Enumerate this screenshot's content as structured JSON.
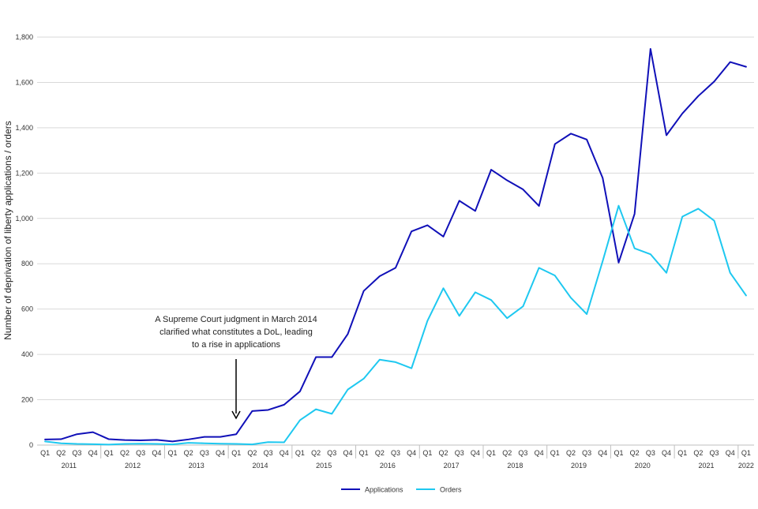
{
  "chart_data": {
    "type": "line",
    "ylabel": "Number of deprivation of liberty applications / orders",
    "ylim": [
      0,
      1800
    ],
    "yticks": [
      "0",
      "200",
      "400",
      "600",
      "800",
      "1,000",
      "1,200",
      "1,400",
      "1,600",
      "1,800"
    ],
    "ytick_values": [
      0,
      200,
      400,
      600,
      800,
      1000,
      1200,
      1400,
      1600,
      1800
    ],
    "grid": true,
    "legend_position": "bottom",
    "years": [
      "2011",
      "2012",
      "2013",
      "2014",
      "2015",
      "2016",
      "2017",
      "2018",
      "2019",
      "2020",
      "2021",
      "2022"
    ],
    "categories": [
      "Q1",
      "Q2",
      "Q3",
      "Q4",
      "Q1",
      "Q2",
      "Q3",
      "Q4",
      "Q1",
      "Q2",
      "Q3",
      "Q4",
      "Q1",
      "Q2",
      "Q3",
      "Q4",
      "Q1",
      "Q2",
      "Q3",
      "Q4",
      "Q1",
      "Q2",
      "Q3",
      "Q4",
      "Q1",
      "Q2",
      "Q3",
      "Q4",
      "Q1",
      "Q2",
      "Q3",
      "Q4",
      "Q1",
      "Q2",
      "Q3",
      "Q4",
      "Q1",
      "Q2",
      "Q3",
      "Q4",
      "Q1",
      "Q2",
      "Q3",
      "Q4",
      "Q1"
    ],
    "series": [
      {
        "name": "Applications",
        "color": "#1010b8",
        "values": [
          25,
          26,
          48,
          57,
          26,
          22,
          21,
          23,
          16,
          25,
          36,
          36,
          48,
          150,
          155,
          178,
          237,
          388,
          388,
          490,
          680,
          745,
          782,
          943,
          970,
          920,
          1078,
          1033,
          1215,
          1168,
          1128,
          1055,
          1328,
          1374,
          1348,
          1178,
          805,
          1020,
          1748,
          1367,
          1463,
          1540,
          1604,
          1690,
          1669
        ]
      },
      {
        "name": "Orders",
        "color": "#1ec8f0",
        "values": [
          16,
          8,
          5,
          4,
          2,
          5,
          6,
          5,
          3,
          10,
          8,
          6,
          5,
          3,
          13,
          12,
          110,
          158,
          138,
          245,
          293,
          377,
          366,
          339,
          548,
          692,
          570,
          674,
          640,
          560,
          612,
          782,
          748,
          650,
          578,
          812,
          1056,
          868,
          842,
          760,
          1008,
          1043,
          990,
          760,
          660
        ]
      }
    ],
    "annotation": {
      "lines": [
        "A Supreme Court judgment in March 2014",
        "clarified what constitutes a DoL, leading",
        "to a rise in applications"
      ],
      "target_index": 12
    }
  }
}
